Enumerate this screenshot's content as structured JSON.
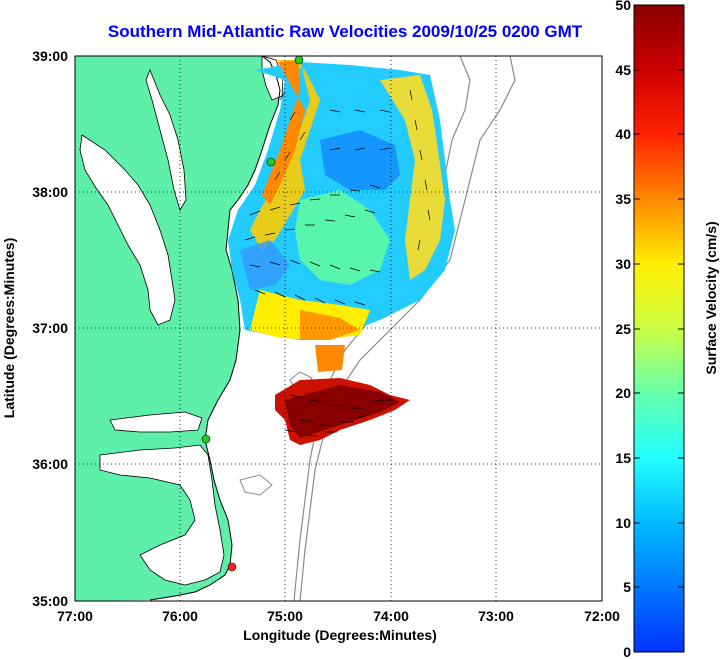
{
  "title": "Southern Mid-Atlantic Raw Velocities 2009/10/25 0200 GMT",
  "xlabel": "Longitude (Degrees:Minutes)",
  "ylabel": "Latitude (Degrees:Minutes)",
  "colorbar_label": "Surface Velocity (cm/s)",
  "x_ticks": [
    "77:00",
    "76:00",
    "75:00",
    "74:00",
    "73:00",
    "72:00"
  ],
  "y_ticks": [
    "39:00",
    "38:00",
    "37:00",
    "36:00",
    "35:00"
  ],
  "colorbar_ticks": [
    "50",
    "45",
    "40",
    "35",
    "30",
    "25",
    "20",
    "15",
    "10",
    "5",
    "0"
  ],
  "colors": {
    "land": "#5ef0a8",
    "title": "#0000ff",
    "station": "#22cc22",
    "station_offline": "#ff2222"
  },
  "chart_data": {
    "type": "heatmap",
    "title": "Southern Mid-Atlantic Raw Velocities 2009/10/25 0200 GMT",
    "xlabel": "Longitude (Degrees:Minutes)",
    "ylabel": "Latitude (Degrees:Minutes)",
    "xlim": [
      -77,
      -72
    ],
    "ylim": [
      35,
      39
    ],
    "colorbar": {
      "label": "Surface Velocity (cm/s)",
      "range": [
        0,
        50
      ]
    },
    "grid": true,
    "stations": [
      {
        "lon": -74.9,
        "lat": 38.98,
        "status": "online"
      },
      {
        "lon": -75.15,
        "lat": 38.22,
        "status": "online"
      },
      {
        "lon": -75.75,
        "lat": 36.18,
        "status": "online"
      },
      {
        "lon": -75.5,
        "lat": 35.26,
        "status": "offline"
      }
    ]
  }
}
